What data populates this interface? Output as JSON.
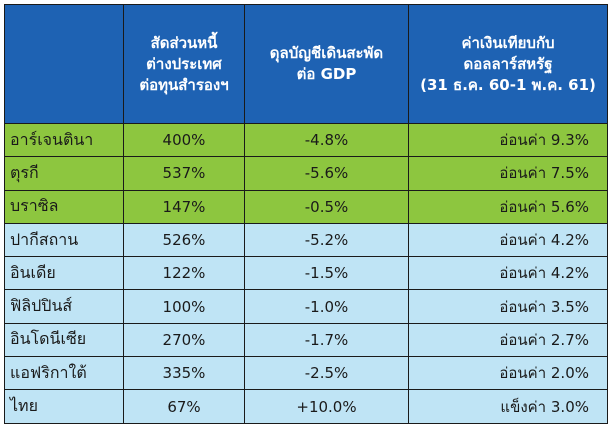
{
  "table": {
    "headers": {
      "country": "",
      "ratio": [
        "สัดส่วนหนี้",
        "ต่างประเทศ",
        "ต่อทุนสำรองฯ"
      ],
      "current_account": [
        "ดุลบัญชีเดินสะพัด",
        "ต่อ GDP"
      ],
      "fx": [
        "ค่าเงินเทียบกับ",
        "ดอลลาร์สหรัฐ",
        "(31 ธ.ค. 60-1 พ.ค. 61)"
      ]
    },
    "rows": [
      {
        "country": "อาร์เจนตินา",
        "ratio": "400%",
        "current_account": "-4.8%",
        "fx": "อ่อนค่า 9.3%",
        "group": "green"
      },
      {
        "country": "ตุรกี",
        "ratio": "537%",
        "current_account": "-5.6%",
        "fx": "อ่อนค่า 7.5%",
        "group": "green"
      },
      {
        "country": "บราซิล",
        "ratio": "147%",
        "current_account": "-0.5%",
        "fx": "อ่อนค่า 5.6%",
        "group": "green"
      },
      {
        "country": "ปากีสถาน",
        "ratio": "526%",
        "current_account": "-5.2%",
        "fx": "อ่อนค่า 4.2%",
        "group": "blue"
      },
      {
        "country": "อินเดีย",
        "ratio": "122%",
        "current_account": "-1.5%",
        "fx": "อ่อนค่า 4.2%",
        "group": "blue"
      },
      {
        "country": "ฟิลิปปินส์",
        "ratio": "100%",
        "current_account": "-1.0%",
        "fx": "อ่อนค่า 3.5%",
        "group": "blue"
      },
      {
        "country": "อินโดนีเซีย",
        "ratio": "270%",
        "current_account": "-1.7%",
        "fx": "อ่อนค่า 2.7%",
        "group": "blue"
      },
      {
        "country": "แอฟริกาใต้",
        "ratio": "335%",
        "current_account": "-2.5%",
        "fx": "อ่อนค่า 2.0%",
        "group": "blue"
      },
      {
        "country": "ไทย",
        "ratio": "67%",
        "current_account": "+10.0%",
        "fx": "แข็งค่า 3.0%",
        "group": "blue"
      }
    ]
  },
  "colors": {
    "header_bg": "#1e62b3",
    "header_text": "#ffffff",
    "group_green": "#8dc63f",
    "group_blue": "#bfe4f5",
    "border": "#1a1a1a"
  }
}
